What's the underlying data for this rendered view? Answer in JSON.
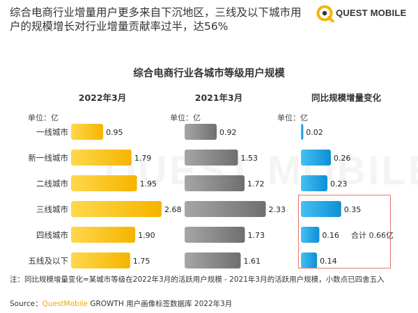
{
  "header": {
    "headline": "综合电商行业增量用户更多来自下沉地区，三线及以下城市用户的规模增长对行业增量贡献率过半，达56%",
    "logo_text": "QUEST MOBILE",
    "watermark": "QUEST MOBILE"
  },
  "footer": {
    "note": "注：同比规模增量变化=某城市等级在2022年3月的活跃用户规模 - 2021年3月的活跃用户规模，小数点已四舍五入",
    "source_prefix": "Source：",
    "source_brand": "QuestMobile",
    "source_suffix": " GROWTH 用户画像标签数据库 2022年3月"
  },
  "annotation": {
    "total": "合计 0.66亿"
  },
  "colors": {
    "gold": "#ffc61a",
    "gray": "#8c8c8c",
    "blue": "#1aa3e6",
    "highlight": "#e8756f"
  },
  "chart_data": {
    "type": "bar",
    "title": "综合电商行业各城市等级用户规模",
    "unit_label": "单位：亿",
    "categories": [
      "一线城市",
      "新一线城市",
      "二线城市",
      "三线城市",
      "四线城市",
      "五线及以下"
    ],
    "series": [
      {
        "name": "2022年3月",
        "values": [
          0.95,
          1.79,
          1.95,
          2.68,
          1.9,
          1.75
        ],
        "labels": [
          "0.95",
          "1.79",
          "1.95",
          "2.68",
          "1.90",
          "1.75"
        ]
      },
      {
        "name": "2021年3月",
        "values": [
          0.92,
          1.53,
          1.72,
          2.33,
          1.73,
          1.61
        ],
        "labels": [
          "0.92",
          "1.53",
          "1.72",
          "2.33",
          "1.73",
          "1.61"
        ]
      },
      {
        "name": "同比规模增量变化",
        "values": [
          0.02,
          0.26,
          0.23,
          0.35,
          0.16,
          0.14
        ],
        "labels": [
          "0.02",
          "0.26",
          "0.23",
          "0.35",
          "0.16",
          "0.14"
        ]
      }
    ],
    "orientation": "horizontal",
    "grid": false
  }
}
